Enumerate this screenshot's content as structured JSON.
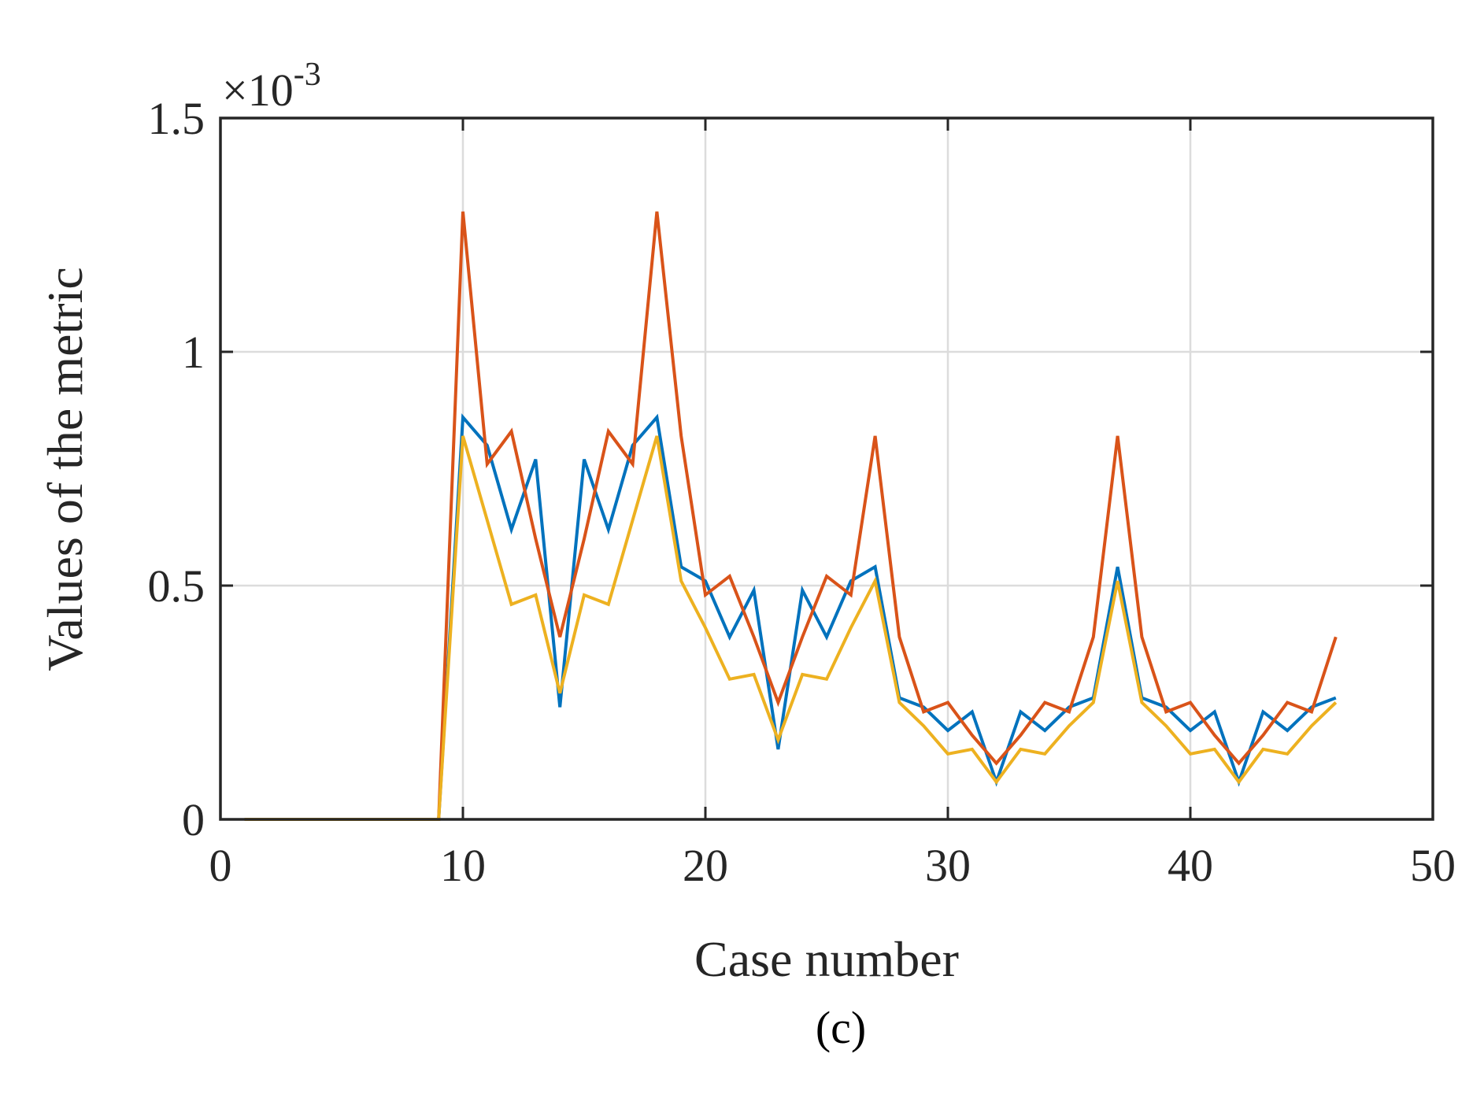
{
  "chart_data": {
    "type": "line",
    "xlabel": "Case number",
    "ylabel": "Values of the metric",
    "y_exponent_label": "×10",
    "y_exponent": "-3",
    "panel_label": "(c)",
    "xlim": [
      0,
      50
    ],
    "ylim": [
      0,
      1.5
    ],
    "xticks": [
      0,
      10,
      20,
      30,
      40,
      50
    ],
    "yticks": [
      0,
      0.5,
      1,
      1.5
    ],
    "xtick_labels": [
      "0",
      "10",
      "20",
      "30",
      "40",
      "50"
    ],
    "ytick_labels": [
      "0",
      "0.5",
      "1",
      "1.5"
    ],
    "grid": true,
    "x": [
      1,
      2,
      3,
      4,
      5,
      6,
      7,
      8,
      9,
      10,
      11,
      12,
      13,
      14,
      15,
      16,
      17,
      18,
      19,
      20,
      21,
      22,
      23,
      24,
      25,
      26,
      27,
      28,
      29,
      30,
      31,
      32,
      33,
      34,
      35,
      36,
      37,
      38,
      39,
      40,
      41,
      42,
      43,
      44,
      45,
      46
    ],
    "series": [
      {
        "color": "#0072BD",
        "values": [
          0,
          0,
          0,
          0,
          0,
          0,
          0,
          0,
          0,
          0.86,
          0.8,
          0.62,
          0.77,
          0.24,
          0.77,
          0.62,
          0.8,
          0.86,
          0.54,
          0.51,
          0.39,
          0.49,
          0.15,
          0.49,
          0.39,
          0.51,
          0.54,
          0.26,
          0.24,
          0.19,
          0.23,
          0.08,
          0.23,
          0.19,
          0.24,
          0.26,
          0.54,
          0.26,
          0.24,
          0.19,
          0.23,
          0.08,
          0.23,
          0.19,
          0.24,
          0.26
        ]
      },
      {
        "color": "#D95319",
        "values": [
          0,
          0,
          0,
          0,
          0,
          0,
          0,
          0,
          0,
          1.3,
          0.76,
          0.83,
          0.6,
          0.39,
          0.6,
          0.83,
          0.76,
          1.3,
          0.82,
          0.48,
          0.52,
          0.39,
          0.25,
          0.39,
          0.52,
          0.48,
          0.82,
          0.39,
          0.23,
          0.25,
          0.18,
          0.12,
          0.18,
          0.25,
          0.23,
          0.39,
          0.82,
          0.39,
          0.23,
          0.25,
          0.18,
          0.12,
          0.18,
          0.25,
          0.23,
          0.39
        ]
      },
      {
        "color": "#EDB120",
        "values": [
          0,
          0,
          0,
          0,
          0,
          0,
          0,
          0,
          0,
          0.82,
          0.64,
          0.46,
          0.48,
          0.27,
          0.48,
          0.46,
          0.64,
          0.82,
          0.51,
          0.41,
          0.3,
          0.31,
          0.17,
          0.31,
          0.3,
          0.41,
          0.51,
          0.25,
          0.2,
          0.14,
          0.15,
          0.08,
          0.15,
          0.14,
          0.2,
          0.25,
          0.51,
          0.25,
          0.2,
          0.14,
          0.15,
          0.08,
          0.15,
          0.14,
          0.2,
          0.25
        ]
      }
    ]
  }
}
